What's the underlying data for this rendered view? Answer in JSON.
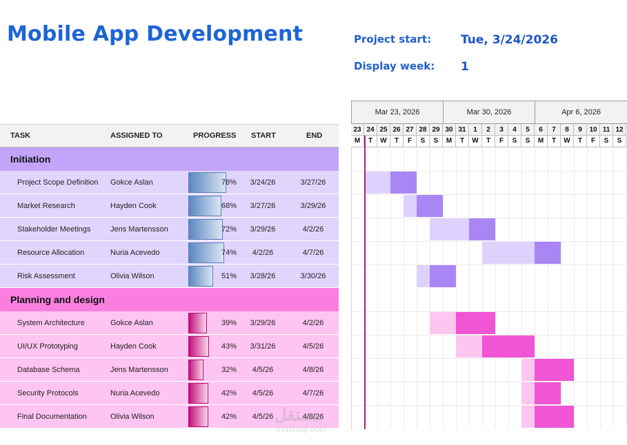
{
  "title": "Mobile App Development",
  "project_start": {
    "label": "Project start:",
    "value": "Tue, 3/24/2026"
  },
  "display_week": {
    "label": "Display week:",
    "value": "1"
  },
  "columns": {
    "task": "TASK",
    "assigned": "ASSIGNED TO",
    "progress": "PROGRESS",
    "start": "START",
    "end": "END"
  },
  "timeline": {
    "weeks": [
      "Mar 23, 2026",
      "Mar 30, 2026",
      "Apr 6, 2026"
    ],
    "days": [
      "23",
      "24",
      "25",
      "26",
      "27",
      "28",
      "29",
      "30",
      "31",
      "1",
      "2",
      "3",
      "4",
      "5",
      "6",
      "7",
      "8",
      "9",
      "10",
      "11",
      "12"
    ],
    "weekdays": [
      "M",
      "T",
      "W",
      "T",
      "F",
      "S",
      "S",
      "M",
      "T",
      "W",
      "T",
      "F",
      "S",
      "S",
      "M",
      "T",
      "W",
      "T",
      "F",
      "S",
      "S"
    ]
  },
  "groups": [
    {
      "name": "Initiation",
      "colors": {
        "header": "#c2a5f9",
        "row": "#e0d5fd",
        "bar_done": "#a986f4",
        "bar_remaining": "#ddd2fe"
      },
      "tasks": [
        {
          "task": "Project Scope Definition",
          "assigned": "Gokce Aslan",
          "progress": 78,
          "progress_label": "78%",
          "start": "3/24/26",
          "end": "3/27/26",
          "start_day": 1,
          "end_day": 4
        },
        {
          "task": "Market Research",
          "assigned": "Hayden Cook",
          "progress": 68,
          "progress_label": "68%",
          "start": "3/27/26",
          "end": "3/29/26",
          "start_day": 4,
          "end_day": 6
        },
        {
          "task": "Stakeholder Meetings",
          "assigned": "Jens Martensson",
          "progress": 72,
          "progress_label": "72%",
          "start": "3/29/26",
          "end": "4/2/26",
          "start_day": 6,
          "end_day": 10
        },
        {
          "task": "Resource Allocation",
          "assigned": "Nuria Acevedo",
          "progress": 74,
          "progress_label": "74%",
          "start": "4/2/26",
          "end": "4/7/26",
          "start_day": 10,
          "end_day": 15
        },
        {
          "task": "Risk Assessment",
          "assigned": "Olivia Wilson",
          "progress": 51,
          "progress_label": "51%",
          "start": "3/28/26",
          "end": "3/30/26",
          "start_day": 5,
          "end_day": 7
        }
      ]
    },
    {
      "name": "Planning and design",
      "colors": {
        "header": "#f97ee0",
        "row": "#fec4f2",
        "bar_done": "#f055d3",
        "bar_remaining": "#fdc6f1"
      },
      "tasks": [
        {
          "task": "System Architecture",
          "assigned": "Gokce Aslan",
          "progress": 39,
          "progress_label": "39%",
          "start": "3/29/26",
          "end": "4/2/26",
          "start_day": 6,
          "end_day": 10
        },
        {
          "task": "UI/UX Prototyping",
          "assigned": "Hayden Cook",
          "progress": 43,
          "progress_label": "43%",
          "start": "3/31/26",
          "end": "4/5/26",
          "start_day": 8,
          "end_day": 13
        },
        {
          "task": "Database Schema",
          "assigned": "Jens Martensson",
          "progress": 32,
          "progress_label": "32%",
          "start": "4/5/26",
          "end": "4/8/26",
          "start_day": 13,
          "end_day": 16
        },
        {
          "task": "Security Protocols",
          "assigned": "Nuria Acevedo",
          "progress": 42,
          "progress_label": "42%",
          "start": "4/5/26",
          "end": "4/7/26",
          "start_day": 13,
          "end_day": 15
        },
        {
          "task": "Final Documentation",
          "assigned": "Olivia Wilson",
          "progress": 42,
          "progress_label": "42%",
          "start": "4/5/26",
          "end": "4/8/26",
          "start_day": 13,
          "end_day": 16
        }
      ]
    }
  ],
  "watermark": {
    "main": "مستقل",
    "sub": "mostaql.com"
  }
}
